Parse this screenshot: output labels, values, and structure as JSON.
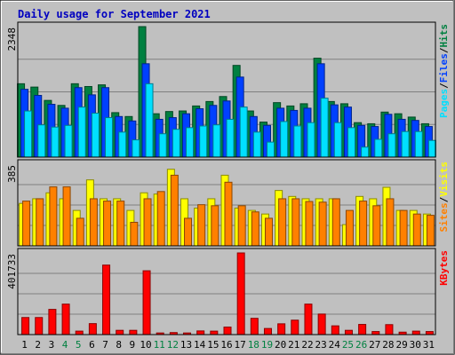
{
  "chart_data": {
    "type": "bar",
    "title": "Daily usage for September 2021",
    "x": [
      "1",
      "2",
      "3",
      "4",
      "5",
      "6",
      "7",
      "8",
      "9",
      "10",
      "11",
      "12",
      "13",
      "14",
      "15",
      "16",
      "17",
      "18",
      "19",
      "20",
      "21",
      "22",
      "23",
      "24",
      "25",
      "26",
      "27",
      "28",
      "29",
      "30",
      "31"
    ],
    "weekend_days": [
      "4",
      "5",
      "11",
      "12",
      "18",
      "19",
      "25",
      "26"
    ],
    "panels": [
      {
        "id": "hits",
        "ymax_label": "2348",
        "ymax": 2348,
        "series": [
          {
            "name": "Hits",
            "color": "#008040",
            "values": [
              1320,
              1260,
              1020,
              930,
              1320,
              1270,
              1300,
              800,
              730,
              2348,
              780,
              820,
              830,
              920,
              1000,
              1090,
              1650,
              830,
              630,
              980,
              920,
              960,
              1780,
              1000,
              960,
              620,
              600,
              810,
              780,
              720,
              600
            ]
          },
          {
            "name": "Files",
            "color": "#0040ff",
            "values": [
              1220,
              1110,
              950,
              880,
              1250,
              1120,
              1250,
              730,
              650,
              1680,
              680,
              710,
              780,
              870,
              930,
              1010,
              1440,
              730,
              570,
              880,
              840,
              880,
              1680,
              940,
              900,
              570,
              550,
              770,
              680,
              660,
              550
            ]
          },
          {
            "name": "Pages",
            "color": "#00e0ff",
            "values": [
              830,
              580,
              540,
              570,
              900,
              790,
              710,
              450,
              310,
              1320,
              420,
              500,
              530,
              560,
              580,
              680,
              900,
              450,
              270,
              640,
              560,
              620,
              1060,
              620,
              530,
              180,
              320,
              420,
              460,
              460,
              300
            ]
          }
        ]
      },
      {
        "id": "visits",
        "ymax_label": "385",
        "ymax": 385,
        "series": [
          {
            "name": "Visits",
            "color": "#ffff00",
            "values": [
              200,
              222,
              250,
              222,
              167,
              311,
              222,
              222,
              167,
              250,
              244,
              361,
              222,
              178,
              222,
              333,
              178,
              167,
              150,
              261,
              233,
              222,
              222,
              222,
              100,
              233,
              222,
              276,
              167,
              167,
              150
            ]
          },
          {
            "name": "Sites",
            "color": "#ff8000",
            "values": [
              211,
              222,
              278,
              278,
              130,
              222,
              211,
              211,
              111,
              222,
              256,
              333,
              130,
              194,
              189,
              300,
              189,
              160,
              130,
              222,
              222,
              209,
              206,
              222,
              167,
              211,
              189,
              222,
              167,
              150,
              144
            ]
          }
        ]
      },
      {
        "id": "kbytes",
        "ymax_label": "401733",
        "ymax": 401733,
        "series": [
          {
            "name": "KBytes",
            "color": "#ff0000",
            "values": [
              84000,
              84000,
              124000,
              150000,
              17000,
              54000,
              342000,
              21000,
              21000,
              314000,
              8000,
              10000,
              8000,
              18000,
              17000,
              37000,
              401733,
              80000,
              30000,
              53000,
              71000,
              150000,
              101000,
              43000,
              21000,
              50000,
              15000,
              49000,
              12000,
              17000,
              15000
            ]
          }
        ]
      }
    ]
  }
}
